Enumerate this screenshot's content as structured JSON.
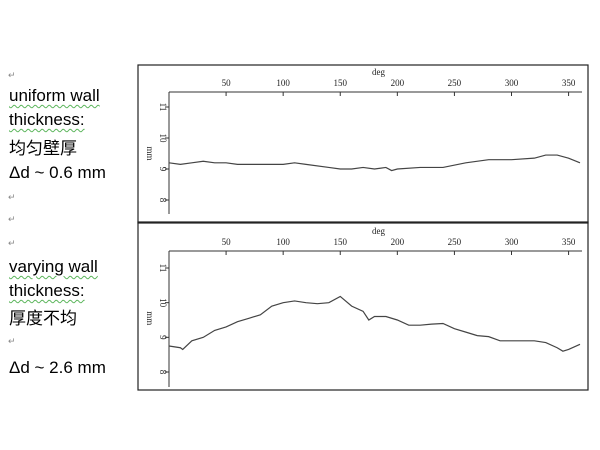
{
  "text": {
    "block1": [
      "uniform wall",
      "thickness:",
      "均匀壁厚",
      "Δd ~ 0.6 mm"
    ],
    "block2": [
      "varying wall",
      "thickness:",
      "厚度不均",
      "Δd ~ 2.6 mm"
    ],
    "para_mark": "↵"
  },
  "chart_data": [
    {
      "type": "line",
      "xlabel": "deg",
      "ylabel": "mm",
      "xlim": [
        0,
        360
      ],
      "ylim": [
        7.6,
        11.4
      ],
      "xticks": [
        50,
        100,
        150,
        200,
        250,
        300,
        350
      ],
      "yticks": [
        8,
        9,
        10,
        11
      ],
      "grid": false,
      "x": [
        0,
        10,
        20,
        30,
        40,
        50,
        60,
        80,
        100,
        110,
        120,
        140,
        150,
        160,
        170,
        180,
        190,
        195,
        200,
        220,
        240,
        260,
        280,
        300,
        320,
        330,
        340,
        350,
        360
      ],
      "y": [
        9.2,
        9.15,
        9.2,
        9.25,
        9.2,
        9.2,
        9.15,
        9.15,
        9.15,
        9.2,
        9.15,
        9.05,
        9.0,
        9.0,
        9.05,
        9.0,
        9.05,
        8.95,
        9.0,
        9.05,
        9.05,
        9.2,
        9.3,
        9.3,
        9.35,
        9.45,
        9.45,
        9.35,
        9.2
      ]
    },
    {
      "type": "line",
      "xlabel": "deg",
      "ylabel": "mm",
      "xlim": [
        0,
        360
      ],
      "ylim": [
        7.6,
        11.5
      ],
      "xticks": [
        50,
        100,
        150,
        200,
        250,
        300,
        350
      ],
      "yticks": [
        8,
        9,
        10,
        11
      ],
      "grid": false,
      "x": [
        0,
        10,
        12,
        20,
        30,
        40,
        50,
        60,
        70,
        80,
        90,
        100,
        110,
        120,
        130,
        140,
        150,
        160,
        170,
        175,
        180,
        190,
        200,
        210,
        220,
        230,
        240,
        250,
        260,
        270,
        280,
        290,
        300,
        310,
        320,
        330,
        340,
        345,
        350,
        360
      ],
      "y": [
        8.75,
        8.7,
        8.65,
        8.9,
        9.0,
        9.2,
        9.3,
        9.45,
        9.55,
        9.65,
        9.9,
        10.0,
        10.05,
        10.0,
        9.97,
        10.0,
        10.18,
        9.9,
        9.75,
        9.5,
        9.6,
        9.6,
        9.5,
        9.35,
        9.35,
        9.38,
        9.4,
        9.25,
        9.15,
        9.05,
        9.02,
        8.9,
        8.9,
        8.9,
        8.9,
        8.85,
        8.7,
        8.6,
        8.65,
        8.8
      ]
    }
  ]
}
